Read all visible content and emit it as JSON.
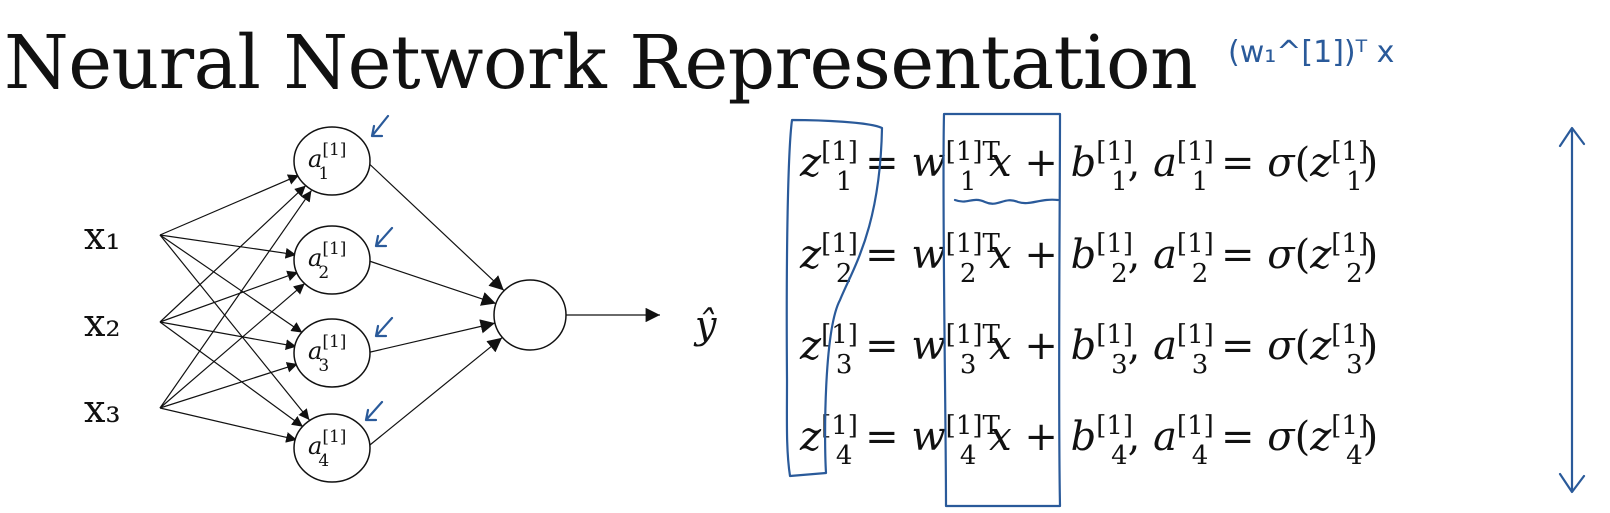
{
  "slide": {
    "title": "Neural Network Representation",
    "handwritten_note": "(w₁^[1])ᵀ x"
  },
  "network": {
    "inputs": [
      "x₁",
      "x₂",
      "x₃"
    ],
    "hidden_base": "a",
    "hidden_sup": "[1]",
    "hidden_subs": [
      "1",
      "2",
      "3",
      "4"
    ],
    "output": "ŷ"
  },
  "equations": [
    {
      "i": "1"
    },
    {
      "i": "2"
    },
    {
      "i": "3"
    },
    {
      "i": "4"
    }
  ],
  "eq_parts": {
    "z": "z",
    "w": "w",
    "b": "b",
    "a": "a",
    "sup": "[1]",
    "supT": "[1]T",
    "eq": "=",
    "x": "x",
    "plus": "+",
    "comma": ",",
    "sigma": "σ",
    "lp": "(",
    "rp": ")"
  },
  "colors": {
    "ink": "#111111",
    "annotation": "#2a5a9a"
  }
}
